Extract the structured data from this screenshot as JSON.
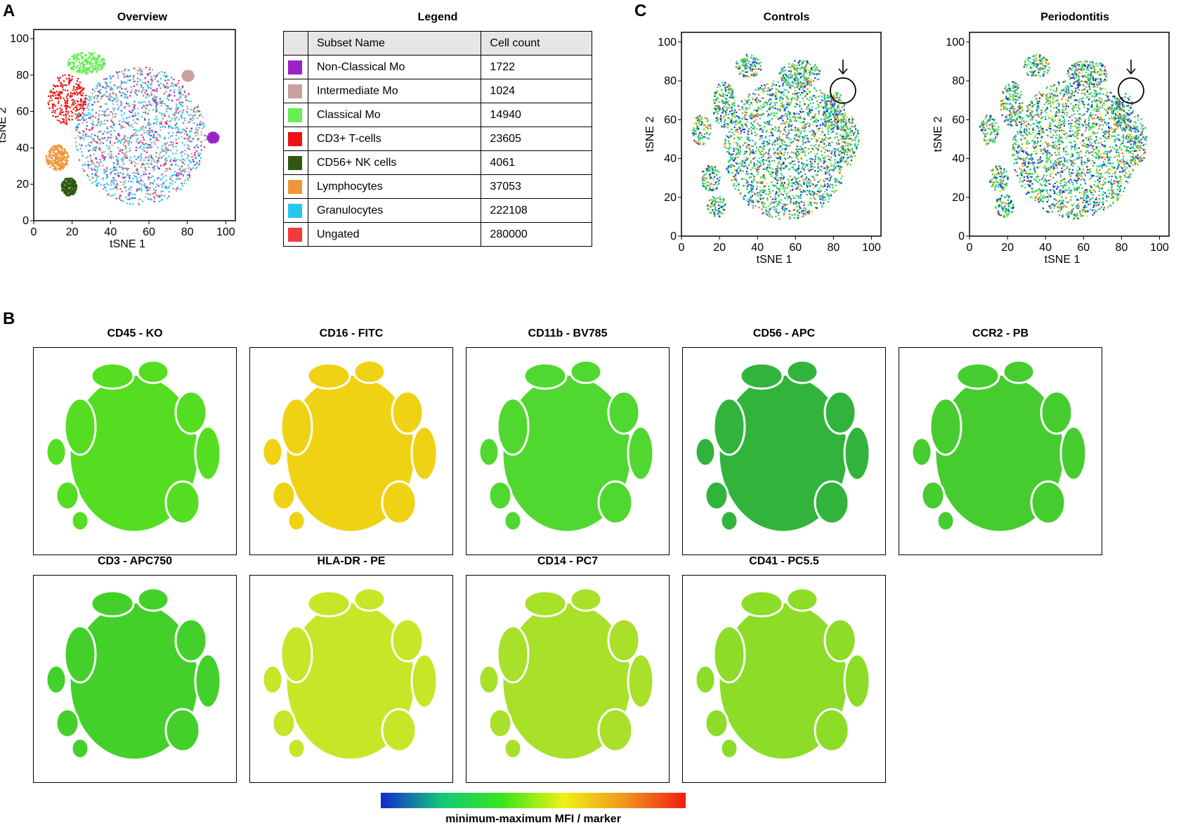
{
  "panels": {
    "a": "A",
    "b": "B",
    "c": "C"
  },
  "chart_data": [
    {
      "id": "overview",
      "type": "scatter",
      "title": "Overview",
      "xlabel": "tSNE 1",
      "ylabel": "tSNE 2",
      "xlim": [
        0,
        105
      ],
      "ylim": [
        0,
        105
      ],
      "xticks": [
        0,
        20,
        40,
        60,
        80,
        100
      ],
      "yticks": [
        0,
        20,
        40,
        60,
        80,
        100
      ],
      "clusters": [
        {
          "name": "Granulocytes",
          "color": "#29c6f0",
          "center": [
            55,
            47
          ],
          "radius": [
            34,
            38
          ],
          "count": 222108
        },
        {
          "name": "Classical Mo",
          "color": "#66ee55",
          "center": [
            27,
            87
          ],
          "radius": [
            10,
            6
          ],
          "count": 14940
        },
        {
          "name": "CD3+ T-cells",
          "color": "#ee1111",
          "center": [
            17,
            67
          ],
          "radius": [
            10,
            14
          ],
          "count": 23605
        },
        {
          "name": "Lymphocytes",
          "color": "#f0963a",
          "center": [
            12,
            35
          ],
          "radius": [
            6,
            7
          ],
          "count": 37053
        },
        {
          "name": "CD56+ NK cells",
          "color": "#2e5a10",
          "center": [
            18,
            19
          ],
          "radius": [
            4,
            5
          ],
          "count": 4061
        },
        {
          "name": "Non-Classical Mo",
          "color": "#9b22c8",
          "center": [
            93,
            46
          ],
          "radius": [
            3,
            3
          ],
          "count": 1722
        },
        {
          "name": "Intermediate Mo",
          "color": "#c9a0a0",
          "center": [
            80,
            80
          ],
          "radius": [
            3,
            3
          ],
          "count": 1024
        }
      ]
    },
    {
      "id": "controls",
      "type": "scatter",
      "title": "Controls",
      "xlabel": "tSNE 1",
      "ylabel": "tSNE 2",
      "xlim": [
        0,
        105
      ],
      "ylim": [
        0,
        105
      ],
      "xticks": [
        0,
        20,
        40,
        60,
        80,
        100
      ],
      "yticks": [
        0,
        20,
        40,
        60,
        80,
        100
      ],
      "annotation": {
        "type": "circle-with-arrow",
        "center": [
          85,
          75
        ]
      }
    },
    {
      "id": "periodontitis",
      "type": "scatter",
      "title": "Periodontitis",
      "xlabel": "tSNE 1",
      "ylabel": "tSNE 2",
      "xlim": [
        0,
        105
      ],
      "ylim": [
        0,
        105
      ],
      "xticks": [
        0,
        20,
        40,
        60,
        80,
        100
      ],
      "yticks": [
        0,
        20,
        40,
        60,
        80,
        100
      ],
      "annotation": {
        "type": "circle-with-arrow",
        "center": [
          85,
          75
        ]
      }
    },
    {
      "id": "marker-maps",
      "type": "heatmap",
      "colorbar_label": "minimum-maximum MFI / marker",
      "colorbar_stops": [
        "#1428d2",
        "#14c878",
        "#3ae61e",
        "#f0f014",
        "#f0961e",
        "#f01e14"
      ],
      "markers": [
        {
          "title": "CD45 - KO",
          "base": "#55dd22"
        },
        {
          "title": "CD16 - FITC",
          "base": "#f0d214"
        },
        {
          "title": "CD11b - BV785",
          "base": "#50d830"
        },
        {
          "title": "CD56 - APC",
          "base": "#32b43c"
        },
        {
          "title": "CCR2 - PB",
          "base": "#46cc2e"
        },
        {
          "title": "CD3 - APC750",
          "base": "#44d02a"
        },
        {
          "title": "HLA-DR - PE",
          "base": "#c8e628"
        },
        {
          "title": "CD14 - PC7",
          "base": "#a8e02a"
        },
        {
          "title": "CD41 - PC5.5",
          "base": "#8cdc28"
        }
      ]
    }
  ],
  "legend": {
    "title": "Legend",
    "headers": [
      "Subset Name",
      "Cell count"
    ],
    "rows": [
      {
        "name": "Non-Classical Mo",
        "count": "1722",
        "color": "#9b22c8"
      },
      {
        "name": "Intermediate Mo",
        "count": "1024",
        "color": "#c9a0a0"
      },
      {
        "name": "Classical Mo",
        "count": "14940",
        "color": "#66ee55"
      },
      {
        "name": "CD3+ T-cells",
        "count": "23605",
        "color": "#ee1111"
      },
      {
        "name": "CD56+ NK cells",
        "count": "4061",
        "color": "#2e5a10"
      },
      {
        "name": "Lymphocytes",
        "count": "37053",
        "color": "#f0963a"
      },
      {
        "name": "Granulocytes",
        "count": "222108",
        "color": "#29c6f0"
      },
      {
        "name": "Ungated",
        "count": "280000",
        "color": "#f03c3c"
      }
    ]
  }
}
